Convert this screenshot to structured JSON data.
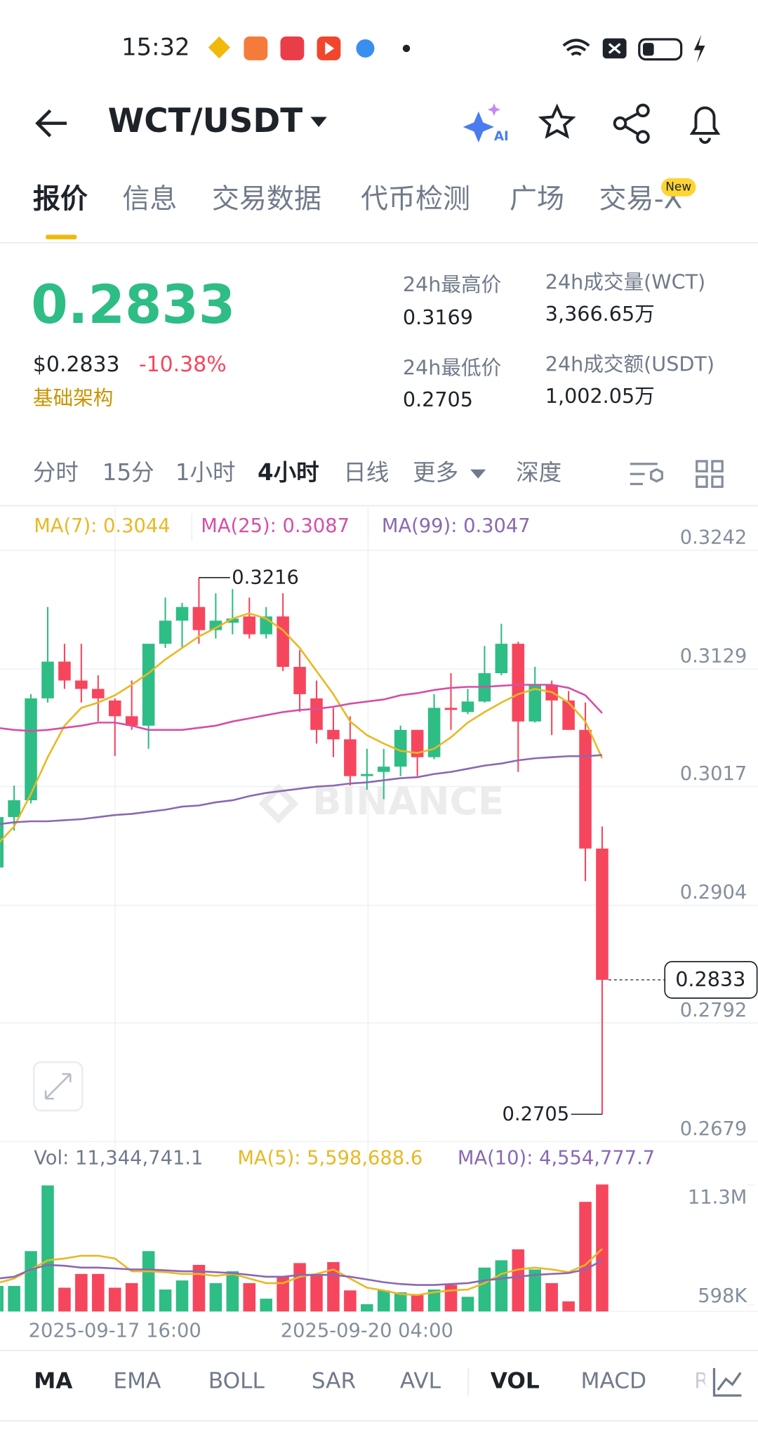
{
  "status_bar": {
    "time": "15:32"
  },
  "header": {
    "pair": "WCT/USDT",
    "ai": "AI"
  },
  "tabs": [
    "报价",
    "信息",
    "交易数据",
    "代币检测",
    "广场",
    "交易-X"
  ],
  "tab_badge": "New",
  "price": {
    "last": "0.2833",
    "usd": "$0.2833",
    "change": "-10.38%",
    "tag": "基础架构"
  },
  "stats": [
    {
      "label": "24h最高价",
      "value": "0.3169"
    },
    {
      "label": "24h成交量(WCT)",
      "value": "3,366.65万"
    },
    {
      "label": "24h最低价",
      "value": "0.2705"
    },
    {
      "label": "24h成交额(USDT)",
      "value": "1,002.05万"
    }
  ],
  "intervals": [
    "分时",
    "15分",
    "1小时",
    "4小时",
    "日线",
    "更多",
    "深度"
  ],
  "indicators": [
    "MA",
    "EMA",
    "BOLL",
    "SAR",
    "AVL",
    "VOL",
    "MACD",
    "R"
  ],
  "chart_data": [
    {
      "type": "candlestick",
      "watermark": "BINANCE",
      "categories": [
        null,
        null,
        null,
        null,
        null,
        null,
        null,
        "2025-09-17 16:00",
        null,
        null,
        null,
        null,
        null,
        null,
        null,
        null,
        null,
        null,
        null,
        null,
        null,
        null,
        "2025-09-20 04:00",
        null,
        null,
        null,
        null,
        null,
        null,
        null,
        null,
        null,
        null,
        null,
        null,
        null,
        null
      ],
      "open": [
        0.294,
        0.2988,
        0.3004,
        0.3101,
        0.3136,
        0.3118,
        0.311,
        0.3099,
        0.3084,
        0.3075,
        0.3153,
        0.3175,
        0.3188,
        0.3166,
        0.3173,
        0.3179,
        0.3162,
        0.3179,
        0.3131,
        0.3101,
        0.3071,
        0.3062,
        0.3027,
        0.3031,
        0.3036,
        0.3071,
        0.3045,
        0.3092,
        0.3088,
        0.3098,
        0.3125,
        0.3153,
        0.3079,
        0.3114,
        0.3099,
        0.3071,
        0.2958
      ],
      "high": [
        0.3001,
        0.3018,
        0.3105,
        0.3188,
        0.3153,
        0.3153,
        0.3123,
        0.3101,
        0.3118,
        0.3153,
        0.3197,
        0.3192,
        0.3216,
        0.3201,
        0.3205,
        0.3197,
        0.3188,
        0.3201,
        0.3147,
        0.3118,
        0.3092,
        0.3084,
        0.3053,
        0.3053,
        0.3075,
        0.3071,
        0.3105,
        0.3125,
        0.311,
        0.3151,
        0.3172,
        0.3155,
        0.3131,
        0.3118,
        0.3108,
        0.3097,
        0.2979
      ],
      "low": [
        0.2935,
        0.2975,
        0.3001,
        0.3097,
        0.311,
        0.3097,
        0.3079,
        0.3046,
        0.3071,
        0.3053,
        0.3149,
        0.3149,
        0.3153,
        0.3158,
        0.3162,
        0.3158,
        0.3158,
        0.3127,
        0.3088,
        0.3058,
        0.3045,
        0.3018,
        0.3014,
        0.3005,
        0.3027,
        0.3027,
        0.3043,
        0.3071,
        0.3086,
        0.3097,
        0.3123,
        0.3031,
        0.3078,
        0.3066,
        0.3071,
        0.2927,
        0.2705
      ],
      "close": [
        0.2988,
        0.3004,
        0.3101,
        0.3136,
        0.3118,
        0.311,
        0.3101,
        0.3084,
        0.3075,
        0.3153,
        0.3175,
        0.3188,
        0.3166,
        0.3175,
        0.3177,
        0.3162,
        0.3179,
        0.3131,
        0.3105,
        0.3071,
        0.3062,
        0.3027,
        0.3029,
        0.3036,
        0.3071,
        0.3045,
        0.3092,
        0.309,
        0.3098,
        0.3125,
        0.3153,
        0.3079,
        0.3114,
        0.3099,
        0.3071,
        0.2958,
        0.2833
      ],
      "up_color": "#2ebd85",
      "down_color": "#f6465d",
      "series": [
        {
          "legend": "MA(7): 0.3044",
          "color": "#e9b824",
          "values": [
            0.2962,
            0.2979,
            0.301,
            0.3045,
            0.3075,
            0.3092,
            0.3097,
            0.3104,
            0.3114,
            0.3125,
            0.3138,
            0.3149,
            0.316,
            0.3168,
            0.3177,
            0.3182,
            0.3177,
            0.3166,
            0.3149,
            0.3127,
            0.3105,
            0.3079,
            0.3066,
            0.3058,
            0.3051,
            0.3049,
            0.3053,
            0.3064,
            0.3078,
            0.3088,
            0.3097,
            0.3105,
            0.311,
            0.3107,
            0.3097,
            0.3079,
            0.3044
          ]
        },
        {
          "legend": "MA(25): 0.3087",
          "color": "#d54fa6",
          "values": [
            0.3073,
            0.3071,
            0.307,
            0.3071,
            0.3073,
            0.3075,
            0.3078,
            0.3078,
            0.3075,
            0.3071,
            0.3071,
            0.3071,
            0.3073,
            0.3075,
            0.3079,
            0.3082,
            0.3085,
            0.3088,
            0.309,
            0.3091,
            0.3093,
            0.3096,
            0.3098,
            0.31,
            0.3104,
            0.3106,
            0.3109,
            0.3111,
            0.3112,
            0.3112,
            0.3113,
            0.3114,
            0.3114,
            0.3114,
            0.3111,
            0.3104,
            0.3087
          ]
        },
        {
          "legend": "MA(99): 0.3047",
          "color": "#8a68b3",
          "values": [
            0.2981,
            0.2983,
            0.2984,
            0.2984,
            0.2985,
            0.2986,
            0.2988,
            0.299,
            0.2991,
            0.2993,
            0.2995,
            0.2998,
            0.2999,
            0.3002,
            0.3004,
            0.3008,
            0.3011,
            0.3013,
            0.3015,
            0.3017,
            0.3018,
            0.302,
            0.3021,
            0.3023,
            0.3025,
            0.3026,
            0.3029,
            0.3031,
            0.3034,
            0.3037,
            0.3039,
            0.3042,
            0.3044,
            0.3045,
            0.3046,
            0.3046,
            0.3047
          ]
        }
      ],
      "ylim": [
        0.2679,
        0.3279
      ],
      "yticks": [
        0.3242,
        0.3129,
        0.3017,
        0.2904,
        0.2792,
        0.2679
      ],
      "high_label": 0.3216,
      "low_label": 0.2705,
      "last_price": 0.2833
    },
    {
      "type": "bar",
      "legend": "Vol: 11,344,741.1",
      "values": [
        2280000,
        2280000,
        5390000,
        11260000,
        2120000,
        3350000,
        3350000,
        2120000,
        2530000,
        5390000,
        1960000,
        2770000,
        4160000,
        2530000,
        3590000,
        2530000,
        1140000,
        3180000,
        4320000,
        3350000,
        4410000,
        1880000,
        650000,
        1880000,
        1710000,
        1470000,
        1960000,
        2370000,
        1310000,
        3920000,
        4570000,
        5550000,
        3750000,
        2530000,
        900000,
        9790000,
        11344741.1
      ],
      "series": [
        {
          "legend": "MA(5): 5,598,688.6",
          "color": "#e9b824",
          "values": [
            2530000,
            2940000,
            3750000,
            4570000,
            4730000,
            4980000,
            4980000,
            4730000,
            3590000,
            3590000,
            3510000,
            3350000,
            3350000,
            3180000,
            3350000,
            2940000,
            2530000,
            2530000,
            3100000,
            3350000,
            3750000,
            2940000,
            2120000,
            1880000,
            1550000,
            1470000,
            1710000,
            1880000,
            1960000,
            2530000,
            3350000,
            3750000,
            3920000,
            3750000,
            3510000,
            4160000,
            5598688.6
          ]
        },
        {
          "legend": "MA(10): 4,554,777.7",
          "color": "#8a68b3",
          "values": [
            2940000,
            3100000,
            3750000,
            4160000,
            4080000,
            3920000,
            3920000,
            3840000,
            3750000,
            3750000,
            3670000,
            3590000,
            3590000,
            3510000,
            3430000,
            3260000,
            3100000,
            3100000,
            3260000,
            3260000,
            3260000,
            3100000,
            2860000,
            2610000,
            2450000,
            2370000,
            2370000,
            2450000,
            2530000,
            2770000,
            2940000,
            3100000,
            3260000,
            3350000,
            3430000,
            3750000,
            4554777.7
          ]
        }
      ],
      "ylim": [
        0,
        12320000
      ],
      "yticks": [
        {
          "value": 11300000,
          "label": "11.3M"
        },
        {
          "value": 598000,
          "label": "598K"
        }
      ]
    }
  ]
}
